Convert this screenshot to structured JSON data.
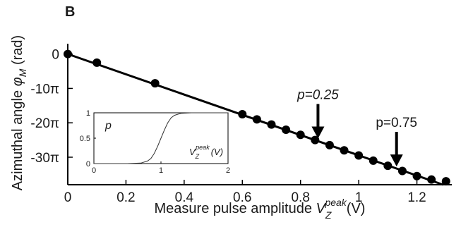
{
  "panel_label": "B",
  "chart_data": [
    {
      "type": "scatter",
      "x_title": {
        "main": "Measure pulse amplitude ",
        "var": "V",
        "sub": "Z",
        "sup": "peak",
        "unit": "(V)"
      },
      "y_title": {
        "main": "Azimuthal angle ",
        "var": "φ",
        "sub": "M",
        "unit": " (rad)"
      },
      "x_ticks": [
        "0",
        "0.2",
        "0.4",
        "0.6",
        "0.8",
        "1",
        "1.2"
      ],
      "x_tick_values": [
        0,
        0.2,
        0.4,
        0.6,
        0.8,
        1.0,
        1.2
      ],
      "y_ticks": [
        "0",
        "-10π",
        "-20π",
        "-30π"
      ],
      "y_tick_values": [
        0,
        -10,
        -20,
        -30
      ],
      "xlim": [
        0,
        1.32
      ],
      "ylim": [
        -38,
        3
      ],
      "y_unit": "π",
      "fit_line": {
        "x": [
          0,
          1.29
        ],
        "y": [
          0,
          -38
        ]
      },
      "series": [
        {
          "x": [
            0.0,
            0.1,
            0.3,
            0.6,
            0.65,
            0.7,
            0.75,
            0.8,
            0.85,
            0.9,
            0.95,
            1.0,
            1.05,
            1.1,
            1.15,
            1.2,
            1.25,
            1.3
          ],
          "y": [
            0.0,
            -2.5,
            -8.5,
            -17.5,
            -19.0,
            -20.5,
            -22.0,
            -23.5,
            -25.0,
            -26.5,
            -28.0,
            -29.5,
            -31.0,
            -32.5,
            -34.0,
            -35.5,
            -36.5,
            -37.0
          ]
        }
      ],
      "annotations": [
        {
          "text": "p=0.25",
          "x": 0.86,
          "y": -25.2
        },
        {
          "text": "p=0.75",
          "x": 1.13,
          "y": -33.3
        }
      ]
    },
    {
      "type": "line",
      "ylabel": "p",
      "x_title": {
        "var": "V",
        "sub": "Z",
        "sup": "peak",
        "unit": "(V)"
      },
      "x_ticks": [
        "0",
        "1",
        "2"
      ],
      "x_tick_values": [
        0,
        1,
        2
      ],
      "y_ticks": [
        "0",
        "0.5",
        "1"
      ],
      "y_tick_values": [
        0,
        0.5,
        1
      ],
      "xlim": [
        0,
        2
      ],
      "ylim": [
        0,
        1
      ],
      "x": [
        0.0,
        0.5,
        0.7,
        0.8,
        0.85,
        0.9,
        0.95,
        1.0,
        1.05,
        1.1,
        1.15,
        1.2,
        1.3,
        1.45,
        2.0
      ],
      "y": [
        0.0,
        0.0,
        0.01,
        0.05,
        0.1,
        0.2,
        0.34,
        0.5,
        0.66,
        0.8,
        0.9,
        0.95,
        0.99,
        1.0,
        1.0
      ]
    }
  ]
}
